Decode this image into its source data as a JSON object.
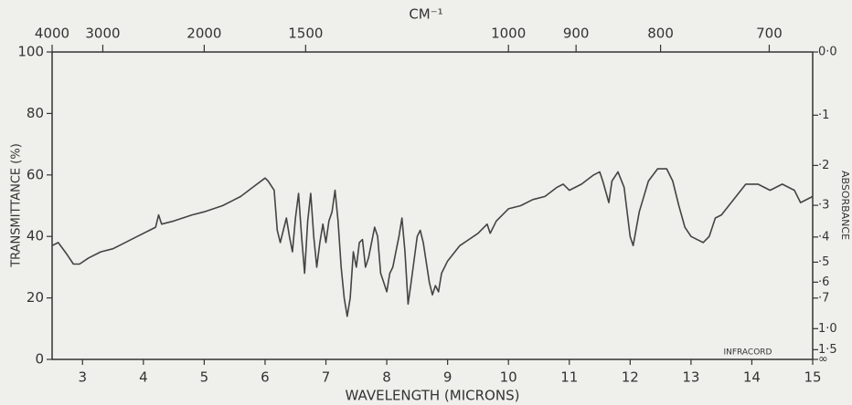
{
  "chart_data": {
    "type": "line",
    "x_top_label": "CM⁻¹",
    "xlabel": "WAVELENGTH (MICRONS)",
    "ylabel": "TRANSMITTANCE (%)",
    "y2label": "ABSORBANCE",
    "annotation": "INFRACORD",
    "color": "#444444",
    "xlim": [
      2.5,
      15
    ],
    "xticks": [
      3,
      4,
      5,
      6,
      7,
      8,
      9,
      10,
      11,
      12,
      13,
      14,
      15
    ],
    "x2ticks": [
      4000,
      3000,
      2000,
      1500,
      1000,
      900,
      800,
      700
    ],
    "ylim": [
      0,
      100
    ],
    "yticks": [
      0,
      20,
      40,
      60,
      80,
      100
    ],
    "y2ticks": [
      {
        "value": 0.0,
        "label": "0·0"
      },
      {
        "value": 0.1,
        "label": "·1"
      },
      {
        "value": 0.2,
        "label": "·2"
      },
      {
        "value": 0.3,
        "label": "·3"
      },
      {
        "value": 0.4,
        "label": "·4"
      },
      {
        "value": 0.5,
        "label": "·5"
      },
      {
        "value": 0.6,
        "label": "·6"
      },
      {
        "value": 0.7,
        "label": "·7"
      },
      {
        "value": 1.0,
        "label": "1·0"
      },
      {
        "value": 1.5,
        "label": "1·5"
      },
      {
        "value": null,
        "label": "∞"
      }
    ],
    "x": [
      2.5,
      2.6,
      2.75,
      2.85,
      2.95,
      3.1,
      3.3,
      3.5,
      3.7,
      3.9,
      4.1,
      4.2,
      4.25,
      4.3,
      4.5,
      4.8,
      5.0,
      5.3,
      5.6,
      5.8,
      6.0,
      6.05,
      6.15,
      6.2,
      6.25,
      6.3,
      6.35,
      6.4,
      6.45,
      6.5,
      6.55,
      6.6,
      6.65,
      6.7,
      6.75,
      6.8,
      6.85,
      6.9,
      6.95,
      7.0,
      7.05,
      7.1,
      7.15,
      7.2,
      7.25,
      7.3,
      7.35,
      7.4,
      7.45,
      7.5,
      7.55,
      7.6,
      7.65,
      7.7,
      7.8,
      7.85,
      7.9,
      7.95,
      8.0,
      8.05,
      8.1,
      8.2,
      8.25,
      8.3,
      8.35,
      8.4,
      8.5,
      8.55,
      8.6,
      8.7,
      8.75,
      8.8,
      8.85,
      8.9,
      9.0,
      9.2,
      9.5,
      9.65,
      9.7,
      9.8,
      10.0,
      10.2,
      10.4,
      10.6,
      10.8,
      10.9,
      11.0,
      11.2,
      11.4,
      11.5,
      11.55,
      11.65,
      11.7,
      11.8,
      11.9,
      12.0,
      12.05,
      12.15,
      12.3,
      12.45,
      12.6,
      12.7,
      12.8,
      12.9,
      13.0,
      13.1,
      13.2,
      13.3,
      13.4,
      13.5,
      13.7,
      13.9,
      14.1,
      14.3,
      14.5,
      14.7,
      14.8,
      15.0
    ],
    "values": [
      37,
      38,
      34,
      31,
      31,
      33,
      35,
      36,
      38,
      40,
      42,
      43,
      47,
      44,
      45,
      47,
      48,
      50,
      53,
      56,
      59,
      58,
      55,
      42,
      38,
      42,
      46,
      40,
      35,
      46,
      54,
      40,
      28,
      45,
      54,
      40,
      30,
      38,
      44,
      38,
      45,
      48,
      55,
      45,
      30,
      20,
      14,
      20,
      35,
      30,
      38,
      39,
      30,
      33,
      43,
      40,
      28,
      25,
      22,
      28,
      30,
      40,
      46,
      35,
      18,
      25,
      40,
      42,
      38,
      25,
      21,
      24,
      22,
      28,
      32,
      37,
      41,
      44,
      41,
      45,
      49,
      50,
      52,
      53,
      56,
      57,
      55,
      57,
      60,
      61,
      58,
      51,
      58,
      61,
      56,
      40,
      37,
      48,
      58,
      62,
      62,
      58,
      50,
      43,
      40,
      39,
      38,
      40,
      46,
      47,
      52,
      57,
      57,
      55,
      57,
      55,
      51,
      53
    ]
  }
}
